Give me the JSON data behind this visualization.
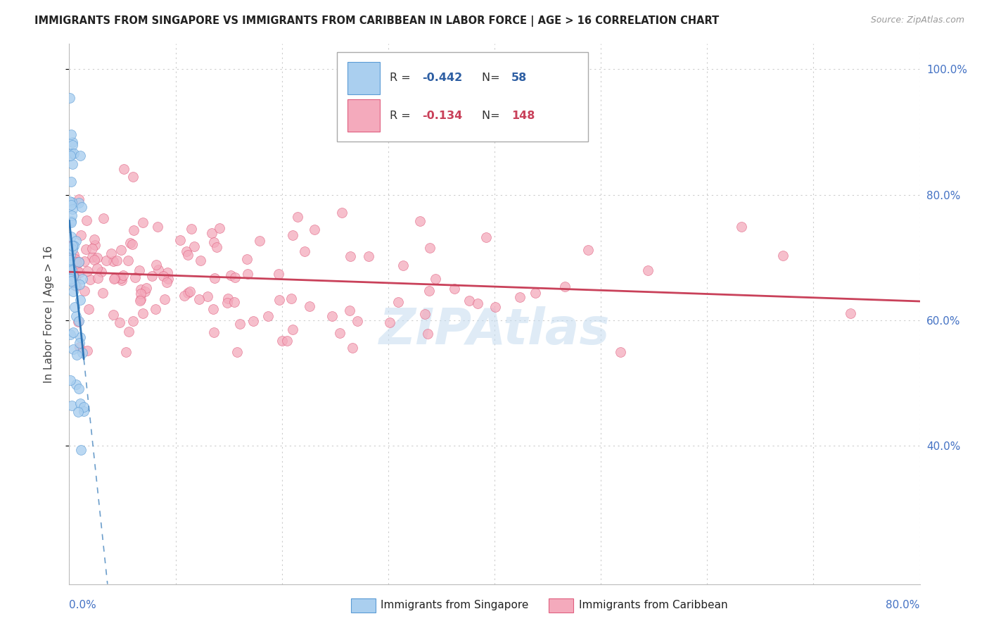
{
  "title": "IMMIGRANTS FROM SINGAPORE VS IMMIGRANTS FROM CARIBBEAN IN LABOR FORCE | AGE > 16 CORRELATION CHART",
  "source": "Source: ZipAtlas.com",
  "ylabel": "In Labor Force | Age > 16",
  "singapore_R": -0.442,
  "singapore_N": 58,
  "caribbean_R": -0.134,
  "caribbean_N": 148,
  "singapore_color": "#AACFEF",
  "singapore_edge_color": "#5B9BD5",
  "singapore_line_color": "#2E75B6",
  "caribbean_color": "#F4AABC",
  "caribbean_edge_color": "#E06080",
  "caribbean_line_color": "#C9415A",
  "background_color": "#FFFFFF",
  "grid_color": "#CCCCCC",
  "watermark_color": "#C5DCF0",
  "xlim": [
    0.0,
    0.8
  ],
  "ylim": [
    0.18,
    1.04
  ],
  "yticks": [
    0.4,
    0.6,
    0.8,
    1.0
  ],
  "ytick_labels": [
    "40.0%",
    "60.0%",
    "80.0%",
    "100.0%"
  ],
  "xtick_labels_show": [
    "0.0%",
    "80.0%"
  ],
  "legend_R_color": "#2E5FA3",
  "legend_N_color": "#2E5FA3",
  "carib_legend_R_color": "#C9415A",
  "carib_legend_N_color": "#C9415A"
}
